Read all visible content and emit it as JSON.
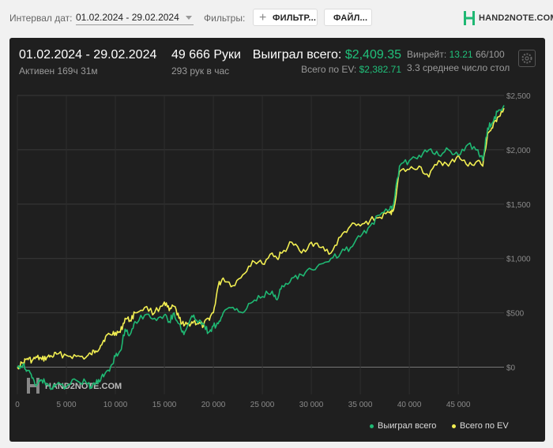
{
  "toolbar": {
    "date_label": "Интервал дат:",
    "date_range": "01.02.2024 - 29.02.2024",
    "filters_label": "Фильтры:",
    "filter_button": "ФИЛЬТР...",
    "files_button": "ФАЙЛ..."
  },
  "logo": {
    "text": "HAND2NOTE.COM"
  },
  "stats": {
    "period": "01.02.2024 - 29.02.2024",
    "active": "Активен 169ч 31м",
    "hands": "49 666 Руки",
    "hands_per_hour": "293 рук в час",
    "won_label": "Выиграл всего:",
    "won_value": "$2,409.35",
    "ev_label": "Всего по EV:",
    "ev_value": "$2,382.71",
    "winrate_label": "Винрейт:",
    "winrate_value": "13.21",
    "winrate_rest": "66/100",
    "tables": "3.3 среднее число стол"
  },
  "watermark": "HAND2NOTE.COM",
  "colors": {
    "won": "#1fb873",
    "ev": "#f2ef52",
    "accent": "#20c07a"
  },
  "chart_data": {
    "type": "line",
    "xlabel": "",
    "ylabel": "",
    "xlim": [
      0,
      49666
    ],
    "ylim": [
      -250,
      2500
    ],
    "x_ticks": [
      0,
      5000,
      10000,
      15000,
      20000,
      25000,
      30000,
      35000,
      40000,
      45000
    ],
    "x_tick_labels": [
      "0",
      "5 000",
      "10 000",
      "15 000",
      "20 000",
      "25 000",
      "30 000",
      "35 000",
      "40 000",
      "45 000"
    ],
    "y_ticks": [
      0,
      500,
      1000,
      1500,
      2000,
      2500
    ],
    "y_tick_labels": [
      "$0",
      "$500",
      "$1,000",
      "$1,500",
      "$2,000",
      "$2,500"
    ],
    "legend_position": "bottom-right",
    "series": [
      {
        "name": "Выиграл всего",
        "color": "#1fb873",
        "x": [
          0,
          600,
          1000,
          1500,
          2000,
          2500,
          3000,
          3500,
          4000,
          5000,
          6000,
          7000,
          7500,
          8000,
          8500,
          9000,
          9500,
          10000,
          10500,
          11000,
          11500,
          12000,
          13000,
          14000,
          15000,
          15500,
          16000,
          16500,
          17000,
          17500,
          18000,
          18500,
          19000,
          19500,
          20000,
          20500,
          21000,
          22000,
          23000,
          24000,
          25000,
          26000,
          26500,
          27000,
          28000,
          29000,
          30000,
          31000,
          32000,
          33000,
          34000,
          35000,
          36000,
          37000,
          38000,
          38400,
          39000,
          40000,
          41000,
          42000,
          43000,
          44000,
          45000,
          46000,
          47000,
          47500,
          48000,
          48500,
          49000,
          49666
        ],
        "values": [
          0,
          30,
          -30,
          -100,
          -160,
          -120,
          -150,
          -200,
          -160,
          -180,
          -120,
          -140,
          -180,
          -150,
          -120,
          -50,
          0,
          100,
          150,
          350,
          300,
          420,
          480,
          450,
          480,
          420,
          500,
          400,
          300,
          400,
          480,
          420,
          400,
          320,
          380,
          400,
          500,
          550,
          500,
          600,
          650,
          700,
          620,
          750,
          820,
          850,
          900,
          950,
          1000,
          1050,
          1100,
          1200,
          1300,
          1400,
          1450,
          1500,
          1850,
          1900,
          1950,
          2000,
          1950,
          2000,
          1950,
          2050,
          2000,
          1900,
          2200,
          2250,
          2350,
          2409.35
        ]
      },
      {
        "name": "Всего по EV",
        "color": "#f2ef52",
        "x": [
          0,
          600,
          1000,
          1500,
          2000,
          2500,
          3000,
          3500,
          4000,
          5000,
          6000,
          7000,
          7500,
          8000,
          8500,
          9000,
          9500,
          10000,
          10500,
          11000,
          11500,
          12000,
          13000,
          14000,
          15000,
          15500,
          16000,
          16500,
          17000,
          17500,
          18000,
          18500,
          19000,
          19500,
          20000,
          20500,
          21000,
          22000,
          23000,
          24000,
          25000,
          26000,
          26500,
          27000,
          28000,
          29000,
          30000,
          31000,
          32000,
          33000,
          34000,
          35000,
          36000,
          37000,
          38000,
          38400,
          39000,
          40000,
          41000,
          42000,
          43000,
          44000,
          45000,
          46000,
          47000,
          47500,
          48000,
          48500,
          49000,
          49666
        ],
        "values": [
          0,
          40,
          80,
          60,
          90,
          70,
          90,
          100,
          120,
          110,
          100,
          90,
          120,
          150,
          200,
          280,
          300,
          320,
          320,
          450,
          430,
          500,
          550,
          500,
          600,
          520,
          560,
          450,
          380,
          400,
          420,
          400,
          380,
          450,
          500,
          750,
          820,
          750,
          850,
          980,
          950,
          1050,
          1000,
          1050,
          1150,
          1050,
          1150,
          1100,
          1050,
          1200,
          1300,
          1300,
          1350,
          1380,
          1420,
          1450,
          1800,
          1820,
          1850,
          1750,
          1900,
          1850,
          1950,
          1850,
          1900,
          1850,
          2150,
          2200,
          2300,
          2382.71
        ]
      }
    ]
  }
}
